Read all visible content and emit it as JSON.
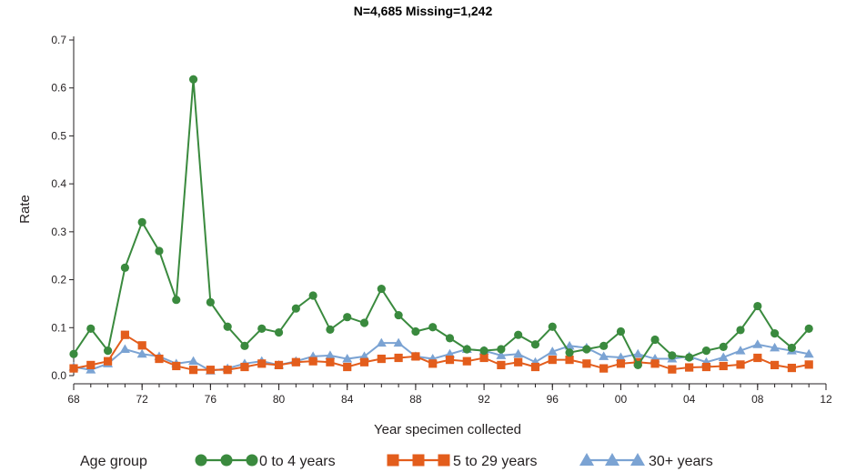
{
  "chart_data": {
    "type": "line",
    "title": "N=4,685    Missing=1,242",
    "xlabel": "Year specimen collected",
    "ylabel": "Rate",
    "legend_title": "Age group",
    "legend_position": "bottom",
    "grid": false,
    "xlim": [
      1968,
      2012
    ],
    "ylim": [
      0,
      0.7
    ],
    "x_ticks": [
      1968,
      1972,
      1976,
      1980,
      1984,
      1988,
      1992,
      1996,
      2000,
      2004,
      2008,
      2012
    ],
    "x_tick_labels": [
      "68",
      "72",
      "76",
      "80",
      "84",
      "88",
      "92",
      "96",
      "00",
      "04",
      "08",
      "12"
    ],
    "y_ticks": [
      0,
      0.1,
      0.2,
      0.3,
      0.4,
      0.5,
      0.6,
      0.7
    ],
    "y_tick_labels": [
      "0.0",
      "0.1",
      "0.2",
      "0.3",
      "0.4",
      "0.5",
      "0.6",
      "0.7"
    ],
    "x": [
      1968,
      1969,
      1970,
      1971,
      1972,
      1973,
      1974,
      1975,
      1976,
      1977,
      1978,
      1979,
      1980,
      1981,
      1982,
      1983,
      1984,
      1985,
      1986,
      1987,
      1988,
      1989,
      1990,
      1991,
      1992,
      1993,
      1994,
      1995,
      1996,
      1997,
      1998,
      1999,
      2000,
      2001,
      2002,
      2003,
      2004,
      2005,
      2006,
      2007,
      2008,
      2009,
      2010,
      2011
    ],
    "series": [
      {
        "name": "0 to 4 years",
        "color": "#3a8a3e",
        "marker": "circle",
        "values": [
          0.045,
          0.098,
          0.052,
          0.225,
          0.32,
          0.26,
          0.158,
          0.618,
          0.153,
          0.102,
          0.062,
          0.098,
          0.09,
          0.14,
          0.167,
          0.096,
          0.122,
          0.11,
          0.181,
          0.126,
          0.092,
          0.101,
          0.078,
          0.055,
          0.052,
          0.055,
          0.085,
          0.065,
          0.102,
          0.048,
          0.055,
          0.062,
          0.092,
          0.022,
          0.075,
          0.042,
          0.038,
          0.052,
          0.06,
          0.095,
          0.145,
          0.088,
          0.058,
          0.098
        ]
      },
      {
        "name": "5 to 29 years",
        "color": "#e35d1c",
        "marker": "square",
        "values": [
          0.015,
          0.022,
          0.03,
          0.085,
          0.063,
          0.035,
          0.02,
          0.012,
          0.012,
          0.012,
          0.018,
          0.025,
          0.022,
          0.028,
          0.03,
          0.028,
          0.018,
          0.028,
          0.035,
          0.037,
          0.04,
          0.025,
          0.033,
          0.03,
          0.037,
          0.022,
          0.028,
          0.018,
          0.033,
          0.033,
          0.025,
          0.015,
          0.025,
          0.028,
          0.025,
          0.013,
          0.017,
          0.018,
          0.02,
          0.023,
          0.037,
          0.022,
          0.016,
          0.023
        ]
      },
      {
        "name": "30+ years",
        "color": "#7ba3d3",
        "marker": "triangle",
        "values": [
          0.018,
          0.012,
          0.025,
          0.055,
          0.045,
          0.04,
          0.025,
          0.03,
          0.01,
          0.015,
          0.025,
          0.03,
          0.022,
          0.03,
          0.04,
          0.042,
          0.035,
          0.04,
          0.068,
          0.068,
          0.04,
          0.035,
          0.045,
          0.055,
          0.052,
          0.042,
          0.045,
          0.028,
          0.05,
          0.062,
          0.058,
          0.04,
          0.038,
          0.045,
          0.035,
          0.035,
          0.04,
          0.028,
          0.038,
          0.052,
          0.065,
          0.058,
          0.052,
          0.045
        ]
      }
    ]
  }
}
